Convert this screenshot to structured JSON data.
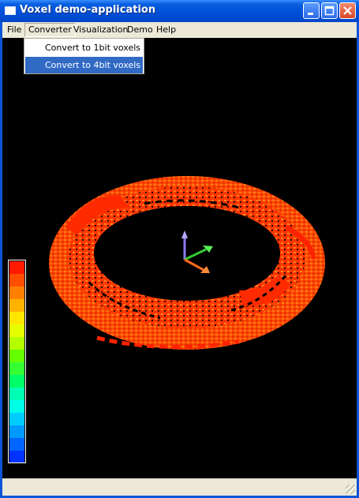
{
  "window": {
    "title": "Voxel demo-application",
    "accent": "#0050d8",
    "controls": [
      "minimize-icon",
      "maximize-icon",
      "close-icon"
    ]
  },
  "menu": {
    "items": [
      {
        "label": "File"
      },
      {
        "label": "Converter",
        "open": true
      },
      {
        "label": "Visualization"
      },
      {
        "label": "Demo"
      },
      {
        "label": "Help"
      }
    ]
  },
  "converter_menu": {
    "items": [
      {
        "label": "Convert to 1bit voxels",
        "selected": false
      },
      {
        "label": "Convert to 4bit voxels",
        "selected": true
      }
    ],
    "highlight_color": "#316ac5"
  },
  "viewport": {
    "background": "#000000",
    "object_colors": [
      "#ff2a00",
      "#ff4a00",
      "#ff6a10",
      "#ff8a20",
      "#e61400"
    ],
    "axes": [
      {
        "name": "x",
        "color": "#ff6a1a"
      },
      {
        "name": "y",
        "color": "#33cc33"
      },
      {
        "name": "z",
        "color": "#8a7cf5"
      }
    ]
  },
  "colorbar": {
    "colors": [
      "#ff1a00",
      "#ff4d00",
      "#ff8000",
      "#ffb300",
      "#ffe600",
      "#e6ff00",
      "#b3ff00",
      "#66ff00",
      "#33ff33",
      "#00ff66",
      "#00ffb3",
      "#00ffe6",
      "#00ccff",
      "#0099ff",
      "#0066ff",
      "#0033ff"
    ]
  },
  "statusbar": {
    "text": ""
  }
}
